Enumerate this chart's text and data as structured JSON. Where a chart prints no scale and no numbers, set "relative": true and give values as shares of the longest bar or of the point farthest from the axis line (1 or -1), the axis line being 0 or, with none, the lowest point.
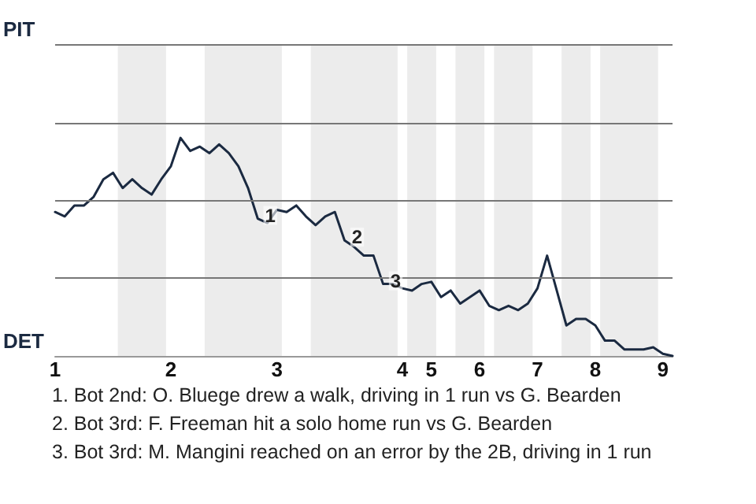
{
  "chart_data": {
    "type": "line",
    "relative": true,
    "categories": [
      "1",
      null,
      null,
      null,
      null,
      null,
      null,
      null,
      null,
      null,
      null,
      null,
      "2",
      null,
      null,
      null,
      null,
      null,
      null,
      null,
      null,
      null,
      null,
      "3",
      null,
      null,
      null,
      null,
      null,
      null,
      null,
      null,
      null,
      null,
      null,
      null,
      "4",
      null,
      null,
      "5",
      null,
      null,
      null,
      null,
      "6",
      null,
      null,
      null,
      null,
      null,
      "7",
      null,
      null,
      null,
      null,
      null,
      "8",
      null,
      null,
      null,
      null,
      null,
      null,
      "9",
      null
    ],
    "series": [
      {
        "color": "#1b2a41",
        "values": [
          0.66,
          0.64,
          0.69,
          0.69,
          0.73,
          0.81,
          0.84,
          0.77,
          0.81,
          0.77,
          0.74,
          0.81,
          0.87,
          1,
          0.94,
          0.96,
          0.93,
          0.97,
          0.93,
          0.87,
          0.77,
          0.63,
          0.61,
          0.67,
          0.66,
          0.69,
          0.64,
          0.6,
          0.64,
          0.66,
          0.53,
          0.5,
          0.46,
          0.46,
          0.33,
          0.33,
          0.31,
          0.3,
          0.33,
          0.34,
          0.27,
          0.3,
          0.24,
          0.27,
          0.3,
          0.23,
          0.21,
          0.23,
          0.21,
          0.24,
          0.31,
          0.46,
          0.3,
          0.14,
          0.17,
          0.17,
          0.14,
          0.07,
          0.07,
          0.03,
          0.03,
          0.03,
          0.04,
          0.01,
          0
        ]
      }
    ],
    "marker": "none",
    "ref_lines": [
      {
        "axis": "y",
        "value": 0.36,
        "color": "#777777"
      },
      {
        "axis": "y",
        "value": 0.71,
        "color": "#777777"
      },
      {
        "axis": "y",
        "value": 1.07,
        "color": "#777777"
      },
      {
        "axis": "y",
        "value": 1.43,
        "color": "#777777"
      }
    ],
    "annotations": [
      {
        "text": "1",
        "y": 0.63
      },
      {
        "text": "2",
        "y": 0.53
      },
      {
        "text": "3",
        "y": 0.33
      },
      "PIT",
      "DET",
      "1. Bot 2nd: O. Bluege drew a walk, driving in 1 run vs G. Bearden",
      "2. Bot 3rd: F. Freeman hit a solo home run vs G. Bearden",
      "3. Bot 3rd: M. Mangini reached on an error by the 2B, driving in 1 run"
    ]
  }
}
